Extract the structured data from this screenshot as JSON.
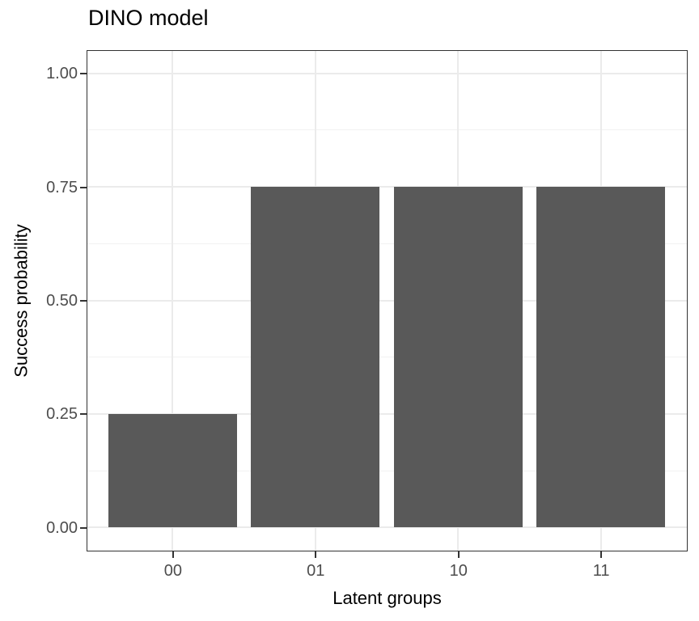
{
  "chart_data": {
    "type": "bar",
    "title": "DINO model",
    "xlabel": "Latent groups",
    "ylabel": "Success probability",
    "categories": [
      "00",
      "01",
      "10",
      "11"
    ],
    "values": [
      0.25,
      0.75,
      0.75,
      0.75
    ],
    "ylim": [
      0,
      1
    ],
    "y_major_ticks": [
      0,
      0.25,
      0.5,
      0.75,
      1
    ],
    "y_tick_labels": [
      "0.00",
      "0.25",
      "0.50",
      "0.75",
      "1.00"
    ],
    "y_minor_ticks": [
      0.125,
      0.375,
      0.625,
      0.875
    ],
    "grid": true,
    "legend_position": "none",
    "colors": {
      "bar": "#595959",
      "grid": "#ebebeb",
      "panel_border": "#333333",
      "tick_label": "#4d4d4d",
      "title_text": "#000000",
      "background": "#ffffff"
    }
  }
}
